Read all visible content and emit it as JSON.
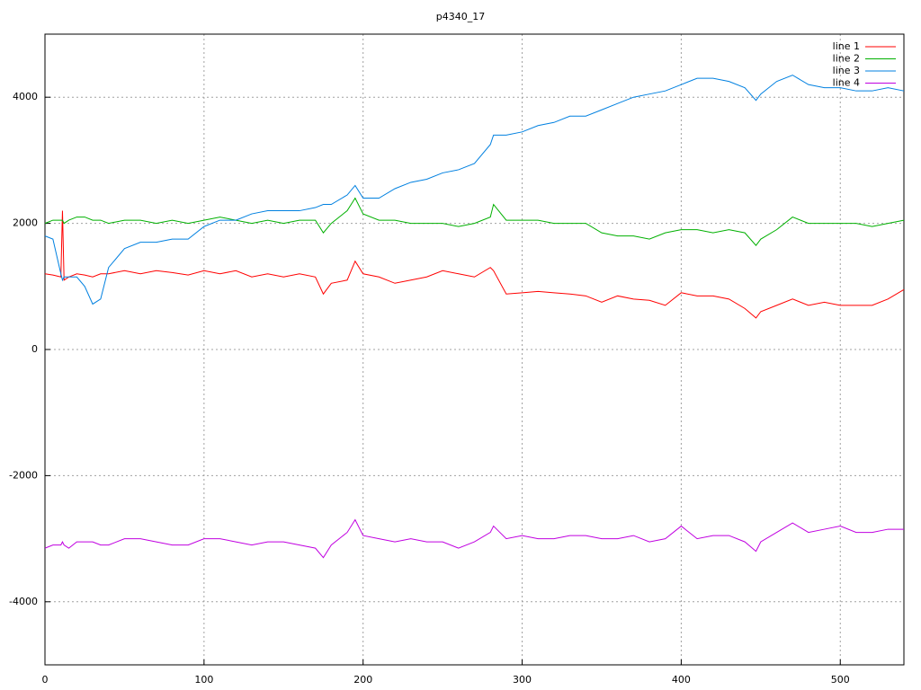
{
  "chart_data": {
    "type": "line",
    "title": "p4340_17",
    "x": [
      0,
      5,
      10,
      11,
      12,
      15,
      20,
      25,
      30,
      35,
      40,
      50,
      60,
      70,
      80,
      90,
      100,
      110,
      120,
      130,
      140,
      150,
      160,
      170,
      175,
      180,
      190,
      195,
      200,
      210,
      220,
      230,
      240,
      250,
      260,
      270,
      280,
      282,
      290,
      300,
      310,
      320,
      330,
      340,
      350,
      360,
      370,
      380,
      390,
      400,
      410,
      420,
      430,
      440,
      447,
      450,
      460,
      470,
      480,
      490,
      500,
      510,
      520,
      530,
      540
    ],
    "series": [
      {
        "name": "line 1",
        "color": "#ff0000",
        "values": [
          1200,
          1180,
          1150,
          2200,
          1100,
          1150,
          1200,
          1180,
          1150,
          1200,
          1200,
          1250,
          1200,
          1250,
          1220,
          1180,
          1250,
          1200,
          1250,
          1150,
          1200,
          1150,
          1200,
          1150,
          880,
          1050,
          1100,
          1400,
          1200,
          1150,
          1050,
          1100,
          1150,
          1250,
          1200,
          1150,
          1300,
          1250,
          880,
          900,
          920,
          900,
          880,
          850,
          750,
          850,
          800,
          780,
          700,
          900,
          850,
          850,
          800,
          650,
          500,
          600,
          700,
          800,
          700,
          750,
          700,
          700,
          700,
          800,
          950
        ]
      },
      {
        "name": "line 2",
        "color": "#00b000",
        "values": [
          2000,
          2050,
          2050,
          2050,
          2000,
          2050,
          2100,
          2100,
          2050,
          2050,
          2000,
          2050,
          2050,
          2000,
          2050,
          2000,
          2050,
          2100,
          2050,
          2000,
          2050,
          2000,
          2050,
          2050,
          1850,
          2000,
          2200,
          2400,
          2150,
          2050,
          2050,
          2000,
          2000,
          2000,
          1950,
          2000,
          2100,
          2300,
          2050,
          2050,
          2050,
          2000,
          2000,
          2000,
          1850,
          1800,
          1800,
          1750,
          1850,
          1900,
          1900,
          1850,
          1900,
          1850,
          1650,
          1750,
          1900,
          2100,
          2000,
          2000,
          2000,
          2000,
          1950,
          2000,
          2050
        ]
      },
      {
        "name": "line 3",
        "color": "#0080e0",
        "values": [
          1800,
          1750,
          1200,
          1100,
          1150,
          1150,
          1150,
          1000,
          720,
          800,
          1300,
          1600,
          1700,
          1700,
          1750,
          1750,
          1950,
          2050,
          2050,
          2150,
          2200,
          2200,
          2200,
          2250,
          2300,
          2300,
          2450,
          2600,
          2400,
          2400,
          2550,
          2650,
          2700,
          2800,
          2850,
          2950,
          3250,
          3400,
          3400,
          3450,
          3550,
          3600,
          3700,
          3700,
          3800,
          3900,
          4000,
          4050,
          4100,
          4200,
          4300,
          4300,
          4250,
          4150,
          3950,
          4050,
          4250,
          4350,
          4200,
          4150,
          4150,
          4100,
          4100,
          4150,
          4100
        ]
      },
      {
        "name": "line 4",
        "color": "#c000e0",
        "values": [
          -3150,
          -3100,
          -3100,
          -3050,
          -3100,
          -3150,
          -3050,
          -3050,
          -3050,
          -3100,
          -3100,
          -3000,
          -3000,
          -3050,
          -3100,
          -3100,
          -3000,
          -3000,
          -3050,
          -3100,
          -3050,
          -3050,
          -3100,
          -3150,
          -3300,
          -3100,
          -2900,
          -2700,
          -2950,
          -3000,
          -3050,
          -3000,
          -3050,
          -3050,
          -3150,
          -3050,
          -2900,
          -2800,
          -3000,
          -2950,
          -3000,
          -3000,
          -2950,
          -2950,
          -3000,
          -3000,
          -2950,
          -3050,
          -3000,
          -2800,
          -3000,
          -2950,
          -2950,
          -3050,
          -3200,
          -3050,
          -2900,
          -2750,
          -2900,
          -2850,
          -2800,
          -2900,
          -2900,
          -2850,
          -2850
        ]
      }
    ],
    "xlim": [
      0,
      540
    ],
    "xticks": [
      0,
      100,
      200,
      300,
      400,
      500
    ],
    "ylim": [
      -5000,
      5000
    ],
    "yticks": [
      -4000,
      -2000,
      0,
      2000,
      4000
    ],
    "grid": true,
    "legend": "top-right"
  }
}
